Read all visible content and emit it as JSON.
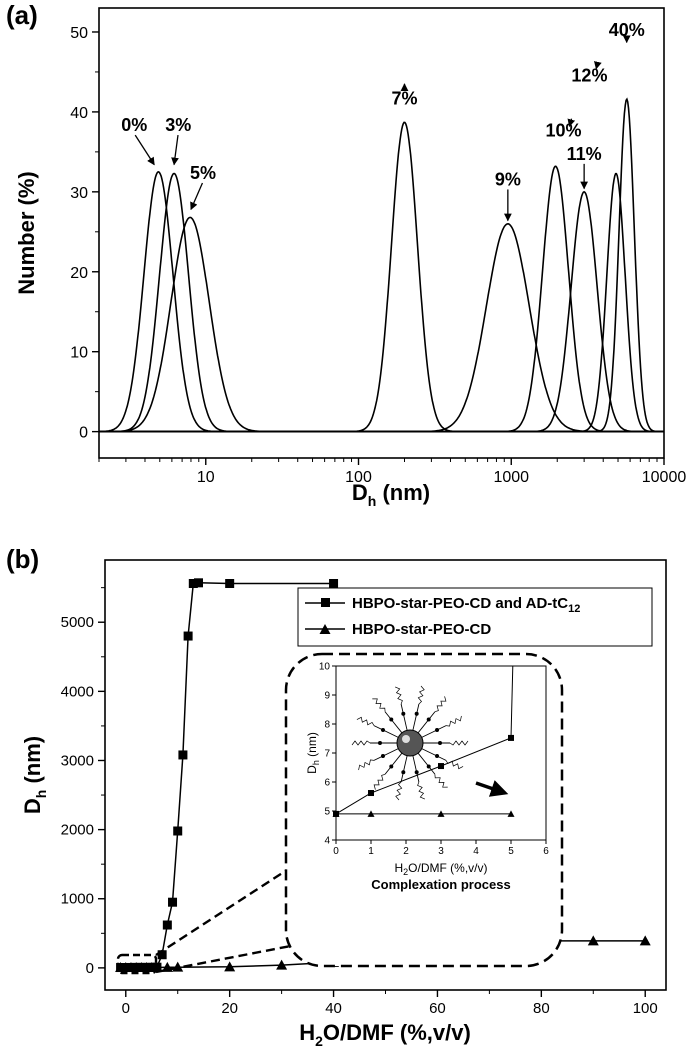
{
  "panels": {
    "a": "(a)",
    "b": "(b)"
  },
  "chart_data": [
    {
      "type": "line",
      "panel": "(a)",
      "title": "",
      "xlabel_main": "D",
      "xlabel_sub": "h",
      "xlabel_unit": " (nm)",
      "ylabel": "Number (%)",
      "xscale": "log",
      "xlim": [
        2,
        10000
      ],
      "ylim": [
        -3.3,
        53
      ],
      "xticks": [
        10,
        100,
        1000,
        10000
      ],
      "xtick_labels": [
        "10",
        "100",
        "1000",
        "10000"
      ],
      "yticks": [
        0,
        10,
        20,
        30,
        40,
        50
      ],
      "ytick_labels": [
        "0",
        "10",
        "20",
        "30",
        "40",
        "50"
      ],
      "series": [
        {
          "name": "0%",
          "peak_x": 4.9,
          "peak_y": 32.5,
          "log_sigma": 0.095
        },
        {
          "name": "3%",
          "peak_x": 6.2,
          "peak_y": 32.3,
          "log_sigma": 0.095
        },
        {
          "name": "5%",
          "peak_x": 7.9,
          "peak_y": 26.8,
          "log_sigma": 0.125
        },
        {
          "name": "7%",
          "peak_x": 200,
          "peak_y": 38.7,
          "log_sigma": 0.085
        },
        {
          "name": "9%",
          "peak_x": 950,
          "peak_y": 26.0,
          "log_sigma": 0.14
        },
        {
          "name": "10%",
          "peak_x": 1950,
          "peak_y": 33.2,
          "log_sigma": 0.085
        },
        {
          "name": "11%",
          "peak_x": 3000,
          "peak_y": 30.0,
          "log_sigma": 0.085
        },
        {
          "name": "12%",
          "peak_x": 4850,
          "peak_y": 32.3,
          "log_sigma": 0.06
        },
        {
          "name": "40%",
          "peak_x": 5700,
          "peak_y": 41.6,
          "log_sigma": 0.05
        }
      ],
      "annotations": [
        {
          "text": "0%",
          "label_x": 3.4,
          "label_y": 37.6,
          "arrow_to_x": 4.6,
          "arrow_to_y": 33.4
        },
        {
          "text": "3%",
          "label_x": 6.6,
          "label_y": 37.6,
          "arrow_to_x": 6.2,
          "arrow_to_y": 33.4
        },
        {
          "text": "5%",
          "label_x": 9.6,
          "label_y": 31.6,
          "arrow_to_x": 8.0,
          "arrow_to_y": 27.8
        },
        {
          "text": "7%",
          "label_x": 200,
          "label_y": 40.9,
          "arrow_to_x": 200,
          "arrow_to_y": 43.5
        },
        {
          "text": "9%",
          "label_x": 950,
          "label_y": 30.8,
          "arrow_to_x": 950,
          "arrow_to_y": 26.4
        },
        {
          "text": "10%",
          "label_x": 2200,
          "label_y": 36.9,
          "arrow_to_x": 2400,
          "arrow_to_y": 38.2
        },
        {
          "text": "11%",
          "label_x": 3000,
          "label_y": 34.0,
          "arrow_to_x": 3000,
          "arrow_to_y": 30.4
        },
        {
          "text": "12%",
          "label_x": 3250,
          "label_y": 43.8,
          "arrow_to_x": 3600,
          "arrow_to_y": 45.4
        },
        {
          "text": "40%",
          "label_x": 5700,
          "label_y": 49.5,
          "arrow_to_x": 5700,
          "arrow_to_y": 48.7
        }
      ]
    },
    {
      "type": "line",
      "panel": "(b)",
      "title": "",
      "xlabel_parts": [
        "H",
        "2",
        "O/DMF (%,v/v)"
      ],
      "ylabel_main": "D",
      "ylabel_sub": "h",
      "ylabel_unit": " (nm)",
      "xlim": [
        -4,
        104
      ],
      "ylim": [
        -320,
        5900
      ],
      "xticks": [
        0,
        20,
        40,
        60,
        80,
        100
      ],
      "xtick_labels": [
        "0",
        "20",
        "40",
        "60",
        "80",
        "100"
      ],
      "yticks": [
        0,
        1000,
        2000,
        3000,
        4000,
        5000
      ],
      "ytick_labels": [
        "0",
        "1000",
        "2000",
        "3000",
        "4000",
        "5000"
      ],
      "legend": "top-right",
      "series": [
        {
          "name": "HBPO-star-PEO-CD and AD-tC",
          "name_sub": "12",
          "marker": "square",
          "x": [
            -1,
            0,
            1,
            2,
            3,
            4,
            5,
            6,
            7,
            8,
            9,
            10,
            11,
            12,
            13,
            14,
            20,
            40
          ],
          "y": [
            5,
            5,
            6,
            7,
            7,
            7,
            8,
            10,
            190,
            620,
            950,
            1980,
            3080,
            4800,
            5560,
            5570,
            5560,
            5560
          ]
        },
        {
          "name": "HBPO-star-PEO-CD",
          "name_sub": "",
          "marker": "triangle",
          "x": [
            -1,
            0,
            1,
            2,
            3,
            4,
            5,
            6,
            8,
            10,
            20,
            30,
            40,
            50,
            60,
            70,
            80,
            90,
            100
          ],
          "y": [
            5,
            5,
            5,
            5,
            5,
            5,
            5,
            5,
            8,
            10,
            15,
            40,
            80,
            120,
            290,
            330,
            390,
            390,
            390
          ]
        }
      ],
      "inset": {
        "ylabel_main": "D",
        "ylabel_sub": "h",
        "ylabel_unit": " (nm)",
        "xlabel_parts": [
          "H",
          "2",
          "O/DMF (%,v/v)"
        ],
        "caption": "Complexation process",
        "xlim": [
          0,
          6
        ],
        "ylim": [
          4,
          10
        ],
        "xticks": [
          0,
          1,
          2,
          3,
          4,
          5,
          6
        ],
        "xtick_labels": [
          "0",
          "1",
          "2",
          "3",
          "4",
          "5",
          "6"
        ],
        "yticks": [
          4,
          5,
          6,
          7,
          8,
          9,
          10
        ],
        "ytick_labels": [
          "4",
          "5",
          "6",
          "7",
          "8",
          "9",
          "10"
        ],
        "series": [
          {
            "marker": "square",
            "x": [
              0,
              1,
              3,
              5,
              5.05
            ],
            "y": [
              4.9,
              5.62,
              6.55,
              7.52,
              10
            ]
          },
          {
            "marker": "triangle",
            "x": [
              0,
              1,
              3,
              5
            ],
            "y": [
              4.9,
              4.9,
              4.9,
              4.9
            ]
          }
        ]
      }
    }
  ]
}
